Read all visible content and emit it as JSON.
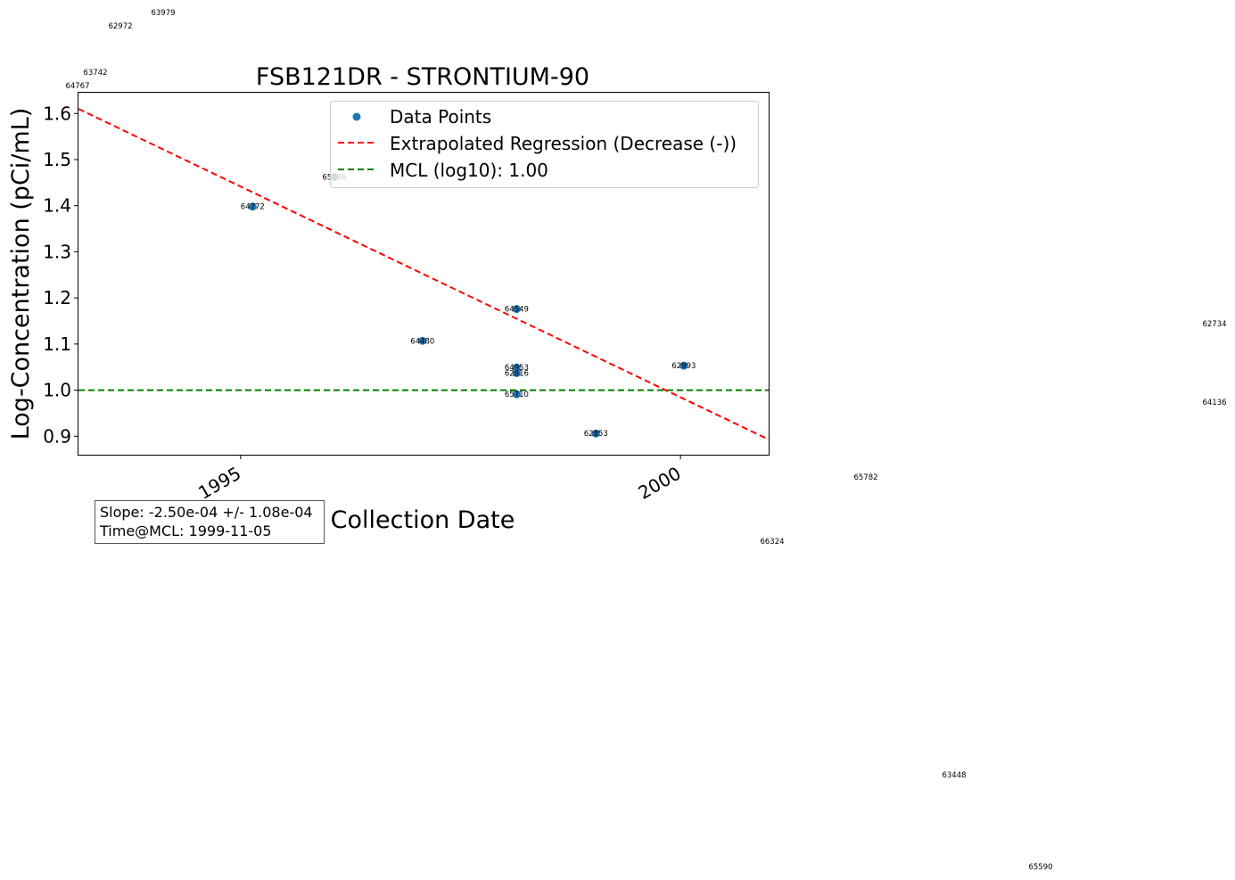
{
  "chart_data": {
    "type": "scatter",
    "title": "FSB121DR - STRONTIUM-90",
    "xlabel": "Collection Date",
    "ylabel": "Log-Concentration (pCi/mL)",
    "xlim": [
      "1993-02-27",
      "2001-01-01"
    ],
    "ylim": [
      0.86,
      1.645
    ],
    "x_ticks": [
      {
        "date": "1995-01-01",
        "label": "1995"
      },
      {
        "date": "2000-01-01",
        "label": "2000"
      }
    ],
    "y_ticks": [
      0.9,
      1.0,
      1.1,
      1.2,
      1.3,
      1.4,
      1.5,
      1.6
    ],
    "grid": false,
    "legend_position": "upper right",
    "legend": {
      "data_points": "Data Points",
      "regression": "Extrapolated Regression (Decrease (-))",
      "mcl": "MCL (log10): 1.00"
    },
    "series": [
      {
        "name": "Data Points",
        "color": "#1f77b4",
        "points": [
          {
            "date": "1995-02-20",
            "y": 1.398,
            "label": "64772"
          },
          {
            "date": "1996-01-25",
            "y": 1.462,
            "label": "65086"
          },
          {
            "date": "1997-01-25",
            "y": 1.107,
            "label": "64480"
          },
          {
            "date": "1998-02-20",
            "y": 1.176,
            "label": "64549"
          },
          {
            "date": "1998-02-20",
            "y": 1.049,
            "label": "64953"
          },
          {
            "date": "1998-02-20",
            "y": 1.037,
            "label": "62816"
          },
          {
            "date": "1998-02-20",
            "y": 0.991,
            "label": "65710"
          },
          {
            "date": "1999-01-15",
            "y": 0.906,
            "label": "62853"
          },
          {
            "date": "2000-01-15",
            "y": 1.053,
            "label": "62993"
          }
        ]
      }
    ],
    "regression": {
      "name": "Extrapolated Regression (Decrease (-))",
      "color": "#ff0000",
      "style": "dashed",
      "start": {
        "date": "1993-02-27",
        "y": 1.61
      },
      "end": {
        "date": "2001-01-01",
        "y": 0.893
      }
    },
    "mcl_line": {
      "name": "MCL (log10): 1.00",
      "y": 1.0,
      "color": "#008000",
      "style": "dashed"
    },
    "stats_box": [
      "Slope: -2.50e-04 +/- 1.08e-04",
      "Time@MCL: 1999-11-05"
    ],
    "stray_labels": [
      "63979",
      "62972",
      "63742",
      "64767",
      "62734",
      "64136",
      "65782",
      "66324",
      "63448",
      "65590"
    ]
  }
}
